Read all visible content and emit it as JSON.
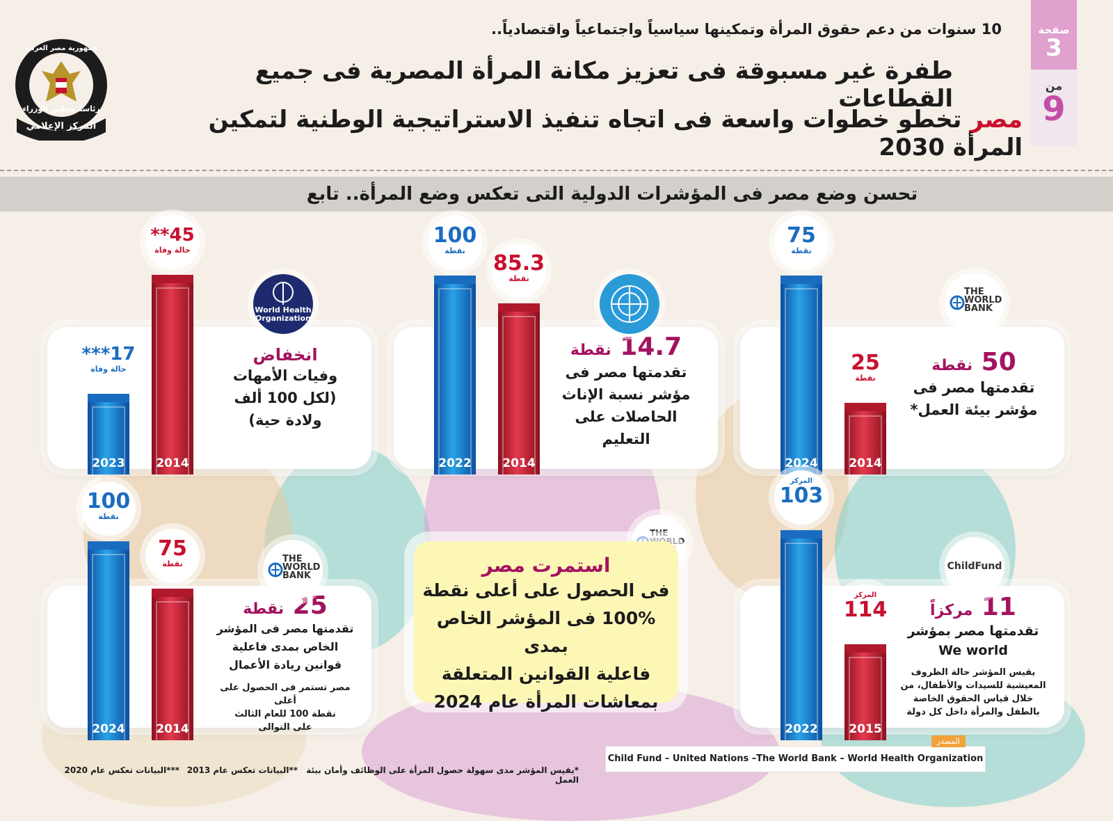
{
  "page": {
    "label": "صفحة",
    "current": "3",
    "of": "من",
    "total": "9"
  },
  "logo": {
    "top_text": "جمهورية مصر العربية",
    "mid_text": "رئاسة مجلس الوزراء",
    "bottom_text": "المركز الإعلامي"
  },
  "header": {
    "line1": "10 سنوات من دعم حقوق المرأة وتمكينها سياسياً واجتماعياً واقتصادياً..",
    "line2": "طفرة غير مسبوقة فى تعزيز مكانة المرأة المصرية فى جميع القطاعات",
    "line3_red": "مصر",
    "line3_rest": " تخطو خطوات واسعة فى اتجاه تنفيذ الاستراتيجية الوطنية لتمكين المرأة 2030"
  },
  "subtitle": "تحسن وضع مصر فى المؤشرات الدولية التى تعكس وضع المرأة.. تابع",
  "colors": {
    "blue": "#1a6cc0",
    "red": "#c8102e",
    "maroon": "#a4135f",
    "yellow": "#fdf7b6"
  },
  "chart_data": [
    {
      "type": "bar",
      "id": "work-env",
      "source": "The World Bank",
      "categories": [
        "2024",
        "2014"
      ],
      "values": [
        75,
        25
      ],
      "unit": "نقطة",
      "headline_value": "50",
      "headline_unit": "نقطة",
      "text": [
        "تقدمتها مصر فى",
        "مؤشر بيئة العمل*"
      ]
    },
    {
      "type": "bar",
      "id": "education",
      "source": "United Nations",
      "categories": [
        "2022",
        "2014"
      ],
      "values": [
        100,
        85.3
      ],
      "unit": "نقطة",
      "headline_value": "14.7",
      "headline_unit": "نقطة",
      "text": [
        "تقدمتها مصر فى",
        "مؤشر نسبة الإناث",
        "الحاصلات على",
        "التعليم"
      ]
    },
    {
      "type": "bar",
      "id": "maternal",
      "source": "World Health Organization",
      "categories": [
        "2023",
        "2014"
      ],
      "values": [
        17,
        45
      ],
      "unit": "حالة وفاة",
      "value_marks": [
        "***",
        "**"
      ],
      "headline": "انخفاض",
      "text": [
        "وفيات الأمهات",
        "(لكل 100 ألف",
        "ولادة حية)"
      ]
    },
    {
      "type": "bar",
      "id": "weworld",
      "source": "ChildFund",
      "categories": [
        "2022",
        "2015"
      ],
      "values": [
        103,
        114
      ],
      "unit": "المركز",
      "headline_value": "11",
      "headline_unit": "مركزاً",
      "text": [
        "تقدمتها مصر بمؤشر",
        "We world"
      ],
      "note": [
        "يقيس المؤشر حالة الظروف",
        "المعيشية للسيدات والأطفال، من",
        "خلال قياس الحقوق الخاصة",
        "بالطفل والمرأة داخل كل دولة"
      ]
    },
    {
      "type": "bar",
      "id": "entrepreneur",
      "source": "The World Bank",
      "categories": [
        "2024",
        "2014"
      ],
      "values": [
        100,
        75
      ],
      "unit": "نقطة",
      "headline_value": "25",
      "headline_unit": "نقطة",
      "text": [
        "تقدمتها مصر فى المؤشر",
        "الخاص بمدى فاعلية",
        "قوانين ريادة الأعمال"
      ],
      "note": [
        "مصر تستمر فى الحصول على أعلى",
        "نقطة 100 للعام الثالث",
        "على التوالى"
      ]
    }
  ],
  "center": {
    "source": "The World Bank",
    "title": "استمرت مصر",
    "body": [
      "فى الحصول على أعلى نقطة",
      "100% فى المؤشر الخاص بمدى",
      "فاعلية القوانين المتعلقة",
      "بمعاشات المرأة عام 2024"
    ]
  },
  "logos": {
    "worldbank": [
      "THE",
      "WORLD",
      "BANK"
    ],
    "who": [
      "World Health",
      "Organization"
    ],
    "childfund": "ChildFund"
  },
  "footnotes": {
    "f1": "*يقيس المؤشر مدى سهولة حصول المرأة على الوظائف وأمان بيئة العمل",
    "f2": "**البيانات تعكس عام 2013",
    "f3": "***البيانات تعكس عام 2020"
  },
  "source": {
    "tag": "المصدر",
    "text": "Child Fund – United Nations –The World Bank – World Health Organization"
  }
}
